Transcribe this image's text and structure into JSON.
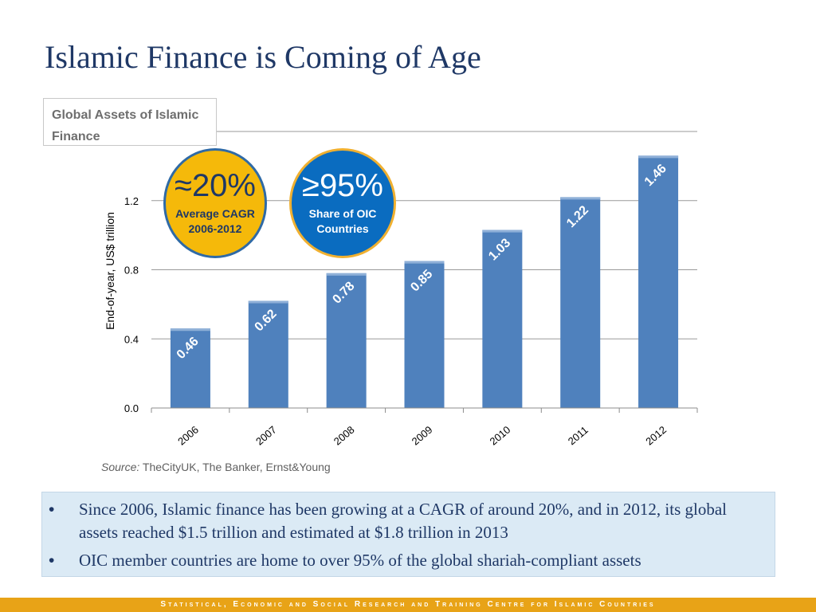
{
  "title": "Islamic Finance is Coming of Age",
  "chart_box_label": "Global Assets of Islamic Finance",
  "badges": {
    "cagr": {
      "value": "≈20%",
      "label_line1": "Average CAGR",
      "label_line2": "2006-2012"
    },
    "share": {
      "value": "≥95%",
      "label_line1": "Share of OIC",
      "label_line2": "Countries"
    }
  },
  "colors": {
    "bar": "#4f81bd",
    "title": "#1f3866",
    "footer": "#e8a317",
    "cagr_badge": "#f5b90a",
    "share_badge": "#0a6cc0"
  },
  "chart_data": {
    "type": "bar",
    "categories": [
      "2006",
      "2007",
      "2008",
      "2009",
      "2010",
      "2011",
      "2012"
    ],
    "values": [
      0.46,
      0.62,
      0.78,
      0.85,
      1.03,
      1.22,
      1.46
    ],
    "data_labels": [
      "0.46",
      "0.62",
      "0.78",
      "0.85",
      "1.03",
      "1.22",
      "1.46"
    ],
    "yticks": [
      "0.0",
      "0.4",
      "0.8",
      "1.2"
    ],
    "ytick_values": [
      0.0,
      0.4,
      0.8,
      1.2
    ],
    "ylabel": "End-of-year, US$ trillion",
    "ylim": [
      0,
      1.6
    ],
    "grid": true
  },
  "source": {
    "label": "Source:",
    "text": "TheCityUK, The Banker, Ernst&Young"
  },
  "bullets": [
    "Since 2006, Islamic finance has been growing at a CAGR of around 20%, and in 2012, its global assets reached $1.5 trillion and estimated at $1.8 trillion in 2013",
    "OIC member countries are home to over 95% of the global shariah-compliant assets"
  ],
  "bullet_marker": "•",
  "footer": "Statistical, Economic and Social Research and Training Centre for Islamic Countries"
}
